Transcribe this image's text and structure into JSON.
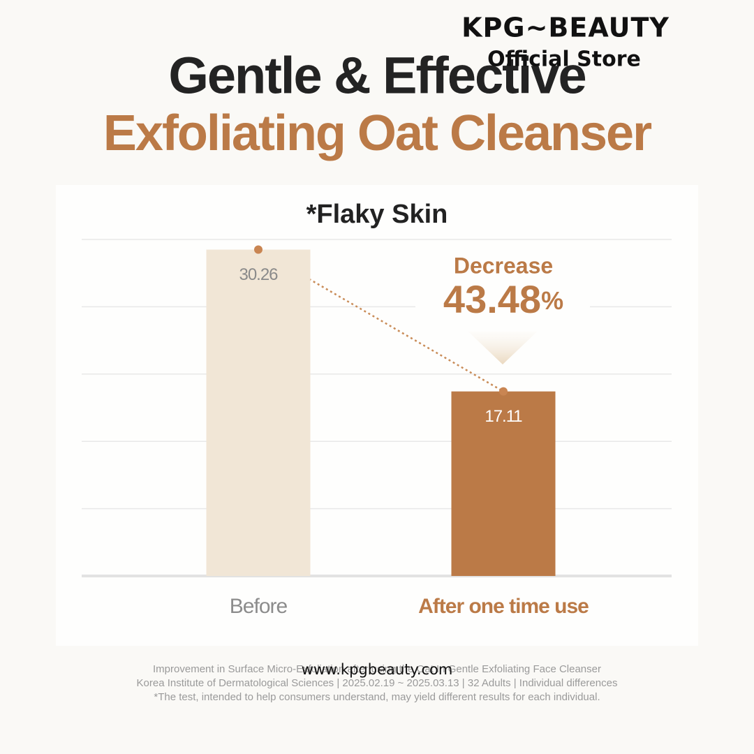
{
  "brand": {
    "name": "KPG~BEAUTY",
    "subtitle": "Official Store"
  },
  "chart_data": {
    "type": "bar",
    "title": "Gentle & Effective",
    "subtitle": "Exfoliating Oat Cleanser",
    "chart_title": "*Flaky Skin",
    "categories": [
      "Before",
      "After one time use"
    ],
    "values": [
      30.26,
      17.11
    ],
    "colors": [
      "#f1e6d6",
      "#bb7a47"
    ],
    "label_colors": [
      "#8c8c8c",
      "#bb7a47"
    ],
    "value_label_colors": [
      "#8a8a8a",
      "#ffffff"
    ],
    "ylim": [
      0,
      31.2
    ],
    "grid": true,
    "annotation": {
      "text": "Decrease",
      "value": "43.48",
      "unit": "%"
    }
  },
  "footnote": [
    "Improvement in Surface Micro-Exfoliation after using the Oat In Gentle Exfoliating Face Cleanser",
    "Korea Institute of Dermatological Sciences | 2025.02.19 ~ 2025.03.13 | 32 Adults | Individual differences",
    "*The test, intended to help consumers understand, may yield different results for each individual."
  ],
  "watermark": "www.kpgbeauty.com"
}
